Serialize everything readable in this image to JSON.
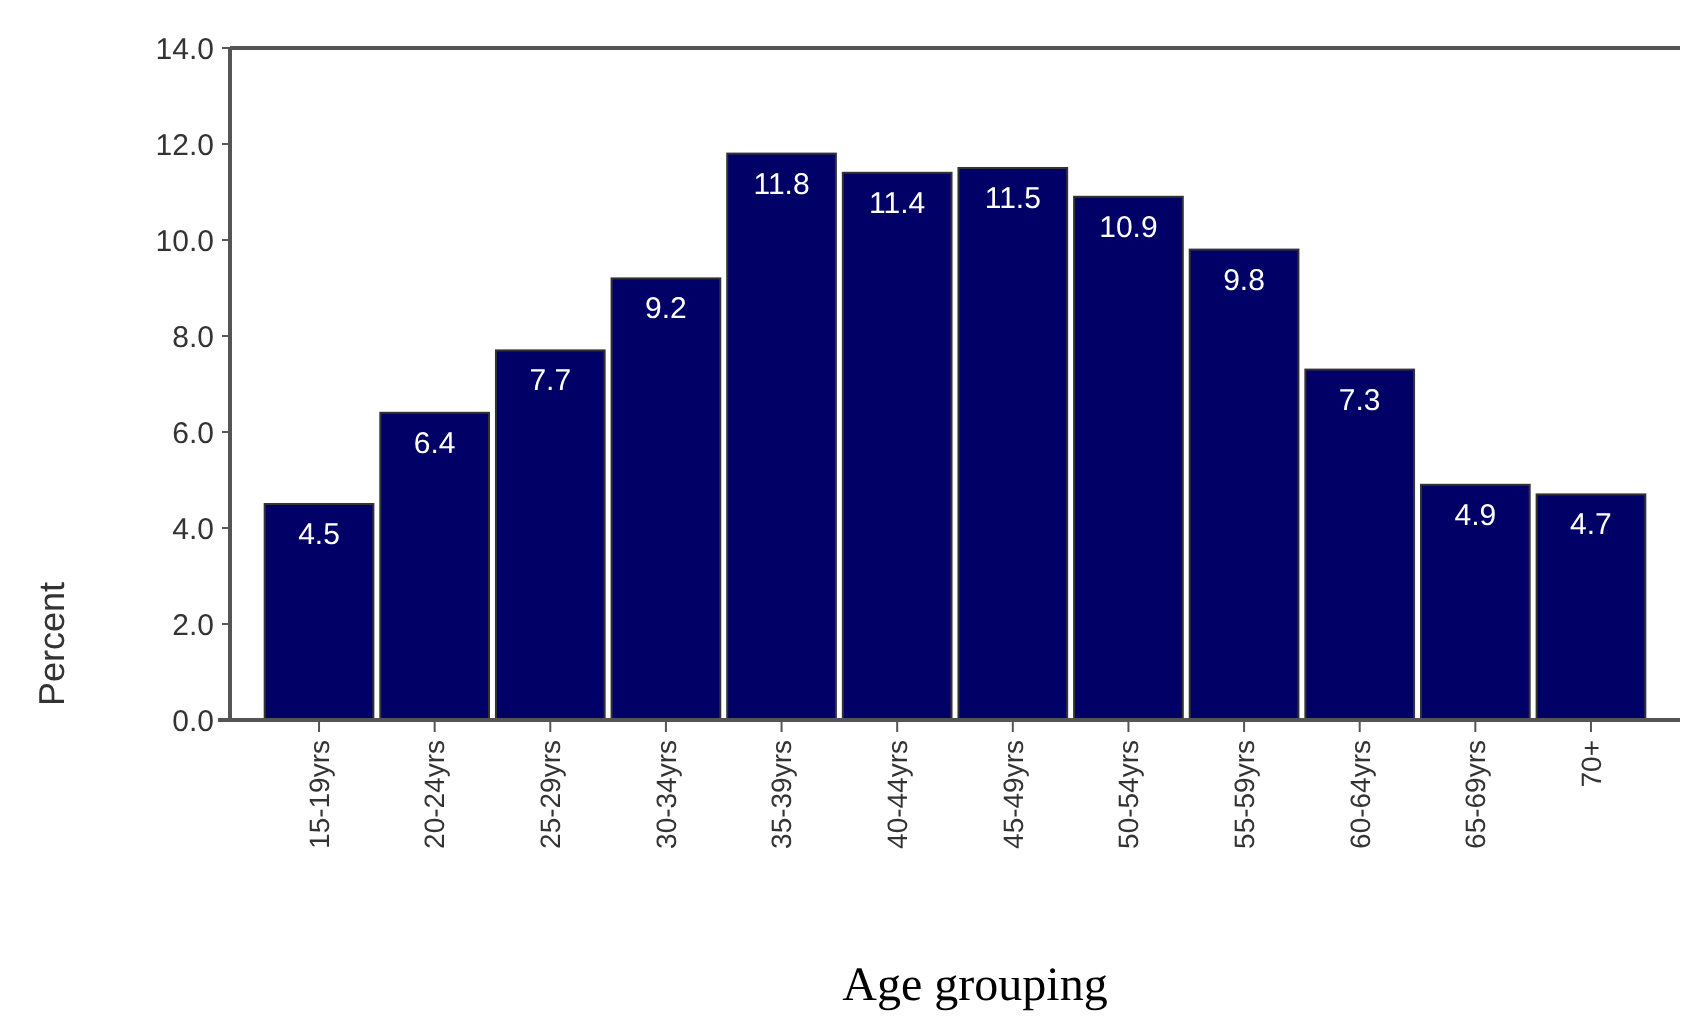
{
  "chart_data": {
    "type": "bar",
    "xlabel": "Age grouping",
    "ylabel": "Percent",
    "categories": [
      "15-19yrs",
      "20-24yrs",
      "25-29yrs",
      "30-34yrs",
      "35-39yrs",
      "40-44yrs",
      "45-49yrs",
      "50-54yrs",
      "55-59yrs",
      "60-64yrs",
      "65-69yrs",
      "70+"
    ],
    "values": [
      4.5,
      6.4,
      7.7,
      9.2,
      11.8,
      11.4,
      11.5,
      10.9,
      9.8,
      7.3,
      4.9,
      4.7
    ],
    "color": "#000066",
    "data_labels": true,
    "grid": false,
    "ylim": [
      0,
      14
    ],
    "yticks": [
      {
        "value": 0,
        "label": "0.0"
      },
      {
        "value": 2,
        "label": "2.0"
      },
      {
        "value": 4,
        "label": "4.0"
      },
      {
        "value": 6,
        "label": "6.0"
      },
      {
        "value": 8,
        "label": "8.0"
      },
      {
        "value": 10,
        "label": "10.0"
      },
      {
        "value": 12,
        "label": "12.0"
      },
      {
        "value": 14,
        "label": "14.0"
      }
    ]
  }
}
